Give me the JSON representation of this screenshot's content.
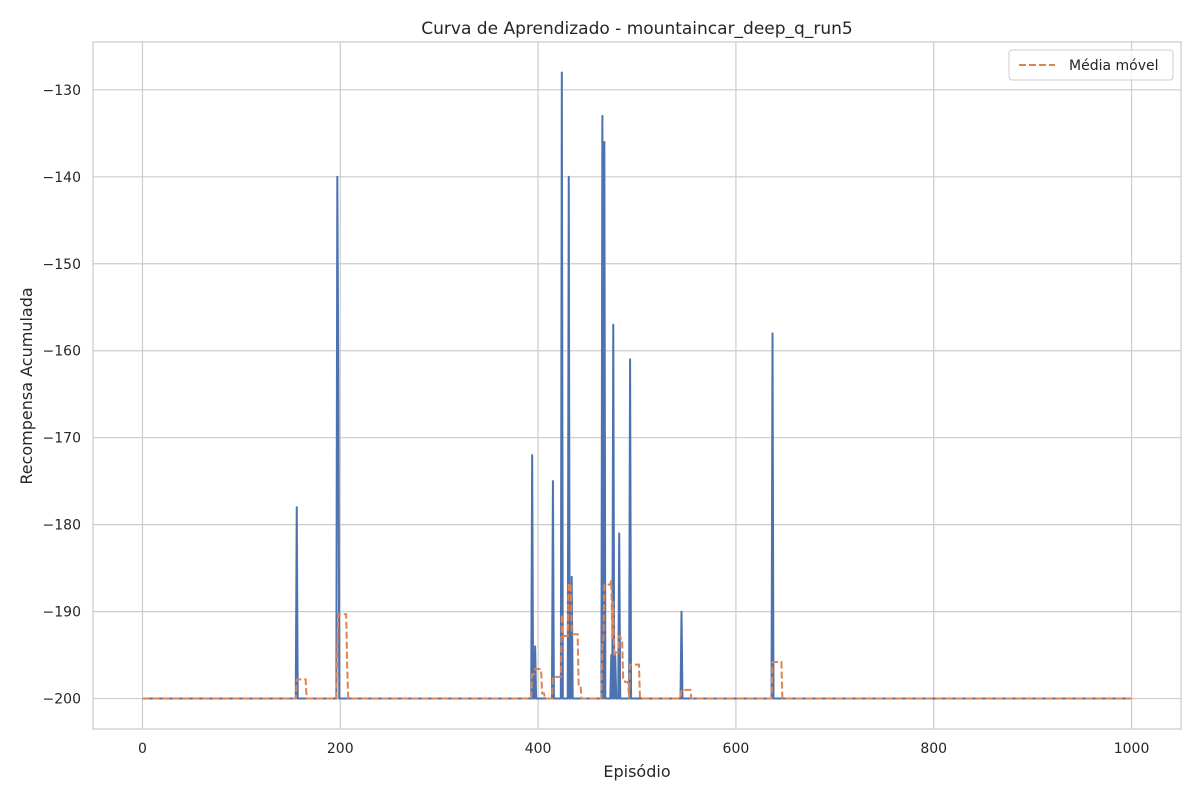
{
  "chart_data": {
    "type": "line",
    "title": "Curva de Aprendizado - mountaincar_deep_q_run5",
    "xlabel": "Episódio",
    "ylabel": "Recompensa Acumulada",
    "xlim": [
      -50,
      1050
    ],
    "ylim": [
      -203.5,
      -124.5
    ],
    "xticks": [
      0,
      200,
      400,
      600,
      800,
      1000
    ],
    "xtick_labels": [
      "0",
      "200",
      "400",
      "600",
      "800",
      "1000"
    ],
    "yticks": [
      -200,
      -190,
      -180,
      -170,
      -160,
      -150,
      -140,
      -130
    ],
    "ytick_labels": [
      "−200",
      "−190",
      "−180",
      "−170",
      "−160",
      "−150",
      "−140",
      "−130"
    ],
    "grid": true,
    "legend_position": "top-right",
    "series": [
      {
        "name": "Recompensa",
        "show_in_legend": false,
        "color": "#4c72b0",
        "style": "solid",
        "x_range": [
          0,
          1000
        ],
        "baseline": -200,
        "spikes": [
          {
            "x": 156,
            "y": -178
          },
          {
            "x": 197,
            "y": -140
          },
          {
            "x": 198,
            "y": -163
          },
          {
            "x": 394,
            "y": -172
          },
          {
            "x": 397,
            "y": -194
          },
          {
            "x": 415,
            "y": -175
          },
          {
            "x": 424,
            "y": -128
          },
          {
            "x": 431,
            "y": -140
          },
          {
            "x": 434,
            "y": -186
          },
          {
            "x": 465,
            "y": -133
          },
          {
            "x": 467,
            "y": -136
          },
          {
            "x": 474,
            "y": -195
          },
          {
            "x": 476,
            "y": -157
          },
          {
            "x": 478,
            "y": -195
          },
          {
            "x": 482,
            "y": -181
          },
          {
            "x": 493,
            "y": -161
          },
          {
            "x": 545,
            "y": -190
          },
          {
            "x": 637,
            "y": -158
          }
        ]
      },
      {
        "name": "Média móvel",
        "show_in_legend": true,
        "color": "#dd8452",
        "style": "dashed",
        "window": 10
      }
    ]
  }
}
